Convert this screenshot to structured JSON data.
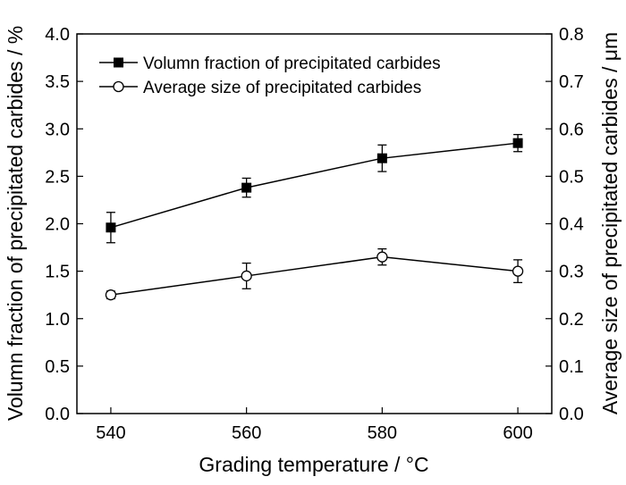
{
  "chart_data": {
    "type": "line",
    "title": "",
    "xlabel": "Grading temperature / °C",
    "ylabel": "Volumn fraction of precipitated carbides / %",
    "y2label": "Average size of precipitated carbides / μm",
    "x": [
      540,
      560,
      580,
      600
    ],
    "xlim": [
      535,
      605
    ],
    "ylim": [
      0,
      4.0
    ],
    "y2lim": [
      0,
      0.8
    ],
    "x_ticks": [
      "540",
      "560",
      "580",
      "600"
    ],
    "y_ticks": [
      "0.0",
      "0.5",
      "1.0",
      "1.5",
      "2.0",
      "2.5",
      "3.0",
      "3.5",
      "4.0"
    ],
    "y2_ticks": [
      "0.0",
      "0.1",
      "0.2",
      "0.3",
      "0.4",
      "0.5",
      "0.6",
      "0.7",
      "0.8"
    ],
    "grid": false,
    "legend_position": "top-left",
    "series": [
      {
        "name": "Volumn fraction of precipitated carbides",
        "axis": "left",
        "marker": "filled-square",
        "values": [
          1.96,
          2.38,
          2.69,
          2.85
        ],
        "error": [
          0.16,
          0.1,
          0.14,
          0.09
        ]
      },
      {
        "name": "Average size of precipitated carbides",
        "axis": "right",
        "marker": "open-circle",
        "values": [
          0.25,
          0.29,
          0.33,
          0.3
        ],
        "error": [
          0.008,
          0.027,
          0.017,
          0.024
        ]
      }
    ]
  }
}
